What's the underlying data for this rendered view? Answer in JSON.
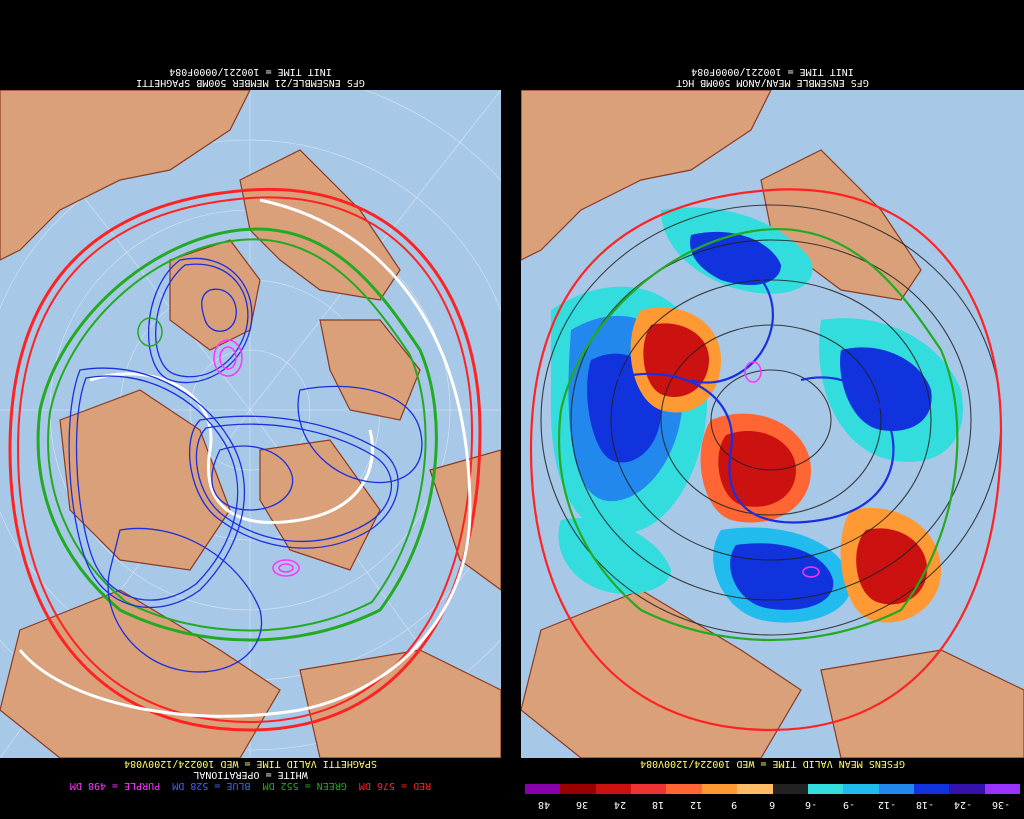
{
  "left": {
    "header_line1": "GFS ENSEMBLE/21 MEMBER 500MB SPAGHETTI",
    "header_line2": "INIT TIME = 100221/0000F084",
    "footer_valid": "SPAGHETTI VALID TIME = WED 100224/1200V084",
    "footer_white": "WHITE = OPERATIONAL",
    "legend": [
      {
        "label": "PURPLE = 498 DM",
        "color": "#ff33ff"
      },
      {
        "label": "BLUE = 528 DM",
        "color": "#3366ff"
      },
      {
        "label": "GREEN = 552 DM",
        "color": "#22aa22"
      },
      {
        "label": "RED = 576 DM",
        "color": "#ff2222"
      }
    ]
  },
  "right": {
    "header_line1": "GFS ENSEMBLE MEAN/ANOM 500MB HGT",
    "header_line2": "INIT TIME = 100221/0000F084",
    "footer_valid": "GFSENS MEAN VALID TIME = WED 100224/1200V084",
    "colorbar": {
      "labels": [
        "48",
        "36",
        "24",
        "18",
        "12",
        "9",
        "6",
        "-6",
        "-9",
        "-12",
        "-18",
        "-24",
        "-36"
      ],
      "colors": [
        "#8800aa",
        "#990000",
        "#cc1111",
        "#ee3333",
        "#ff6633",
        "#ff9933",
        "#ffbb66",
        "#222222",
        "#33dddd",
        "#22bbee",
        "#2288ee",
        "#1133dd",
        "#3311aa",
        "#9933ff"
      ]
    }
  },
  "colors": {
    "ocean": "#a8c8e8",
    "land": "#d9a07a",
    "border": "#8b3a20"
  }
}
